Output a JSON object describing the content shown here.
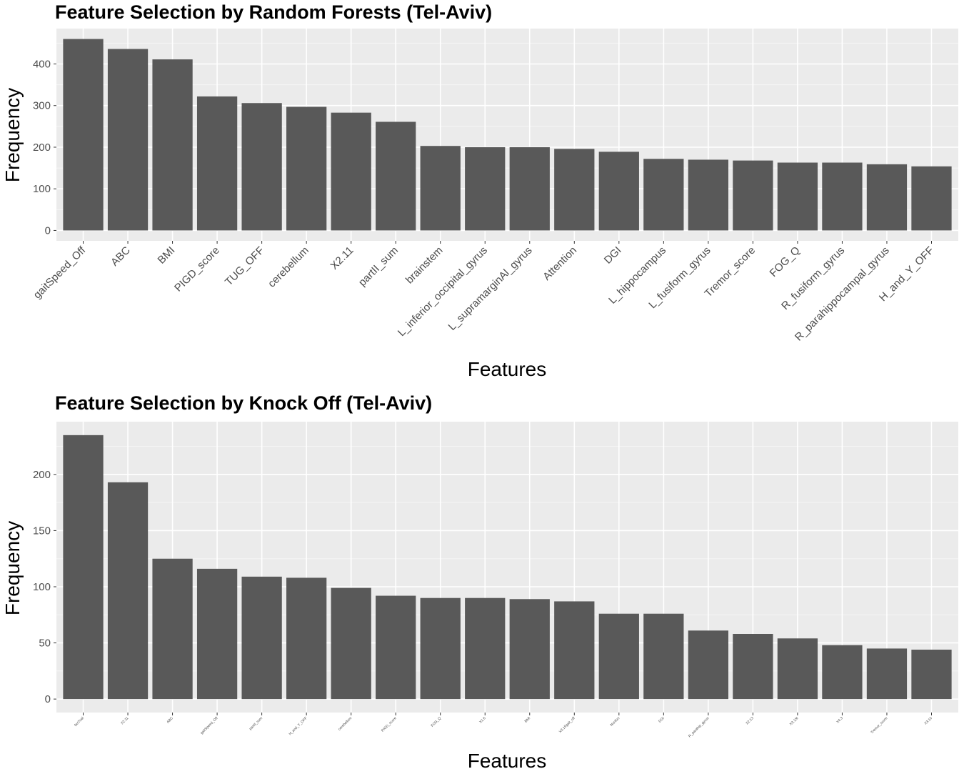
{
  "chart_data": [
    {
      "type": "bar",
      "title": "Feature Selection by Random Forests (Tel-Aviv)",
      "xlabel": "Features",
      "ylabel": "Frequency",
      "ylim": [
        -25,
        485
      ],
      "yticks": [
        0,
        100,
        200,
        300,
        400
      ],
      "grid": true,
      "bar_color": "#595959",
      "panel_color": "#ebebeb",
      "categories": [
        "gaitSpeed_Off",
        "ABC",
        "BMI",
        "PIGD_score",
        "TUG_OFF",
        "cerebellum",
        "X2.11",
        "partII_sum",
        "brainstem",
        "L_inferior_occipital_gyrus",
        "L_supramarginAl_gyrus",
        "Attention",
        "DGI",
        "L_hippocampus",
        "L_fusiform_gyrus",
        "Tremor_score",
        "FOG_Q",
        "R_fusiform_gyrus",
        "R_parahippocampal_gyrus",
        "H_and_Y_OFF"
      ],
      "values": [
        460,
        436,
        411,
        322,
        306,
        297,
        283,
        261,
        203,
        200,
        200,
        196,
        189,
        172,
        170,
        168,
        163,
        163,
        159,
        154
      ]
    },
    {
      "type": "bar",
      "title": "Feature Selection by Knock Off (Tel-Aviv)",
      "xlabel": "Features",
      "ylabel": "Frequency",
      "ylim": [
        -12,
        247
      ],
      "yticks": [
        0,
        50,
        100,
        150,
        200
      ],
      "grid": true,
      "bar_color": "#595959",
      "panel_color": "#ebebeb",
      "categories": [
        "faxTrail",
        "X2.11",
        "ABC",
        "gaitSpeed_Off",
        "partII_sum",
        "H_and_Y_OFF",
        "cerebellum",
        "PIGD_score",
        "FOG_Q",
        "X1.6",
        "BMI",
        "X3.15gait_off",
        "Nonfun",
        "DGI",
        "R_parahip_gyrus",
        "X2.13",
        "X3.15t",
        "X4.3",
        "Tremor_score",
        "X3.10"
      ],
      "values": [
        235,
        193,
        125,
        116,
        109,
        108,
        99,
        92,
        90,
        90,
        89,
        87,
        76,
        76,
        61,
        58,
        54,
        48,
        45,
        44
      ]
    }
  ]
}
